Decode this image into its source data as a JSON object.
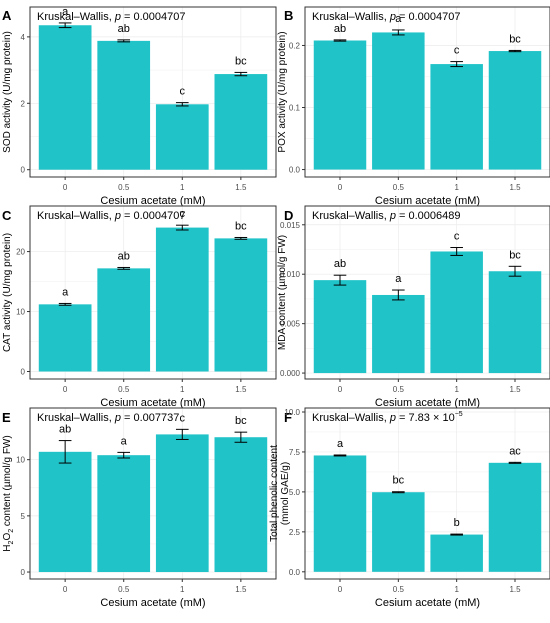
{
  "stat_test_label": "Kruskal–Wallis, ",
  "p_label": "p",
  "colors": {
    "bar": "#1fc3c8",
    "frame": "#333333",
    "grid": "#ebebeb"
  },
  "chart_data": [
    {
      "panel": "A",
      "type": "bar",
      "categories": [
        "0",
        "0.5",
        "1",
        "1.5"
      ],
      "values": [
        4.35,
        3.88,
        1.97,
        2.88
      ],
      "errors": [
        0.07,
        0.03,
        0.05,
        0.05
      ],
      "letters": [
        "a",
        "ab",
        "c",
        "bc"
      ],
      "xlabel": "Cesium acetate (mM)",
      "ylabel": [
        "SOD activity (U/mg protein)"
      ],
      "p_value": "= 0.0004707",
      "yticks": [
        0,
        2,
        4
      ],
      "yticklabels": [
        "0",
        "2",
        "4"
      ],
      "ylim": [
        -0.22,
        4.9
      ]
    },
    {
      "panel": "B",
      "type": "bar",
      "categories": [
        "0",
        "0.5",
        "1",
        "1.5"
      ],
      "values": [
        0.208,
        0.221,
        0.17,
        0.191
      ],
      "errors": [
        0.001,
        0.004,
        0.004,
        0.001
      ],
      "letters": [
        "ab",
        "a",
        "c",
        "bc"
      ],
      "xlabel": "Cesium acetate (mM)",
      "ylabel": [
        "POX activity (U/mg protein)"
      ],
      "p_value": "= 0.0004707",
      "yticks": [
        0,
        0.1,
        0.2
      ],
      "yticklabels": [
        "0.0",
        "0.1",
        "0.2"
      ],
      "ylim": [
        -0.012,
        0.262
      ]
    },
    {
      "panel": "C",
      "type": "bar",
      "categories": [
        "0",
        "0.5",
        "1",
        "1.5"
      ],
      "values": [
        11.2,
        17.2,
        24.0,
        22.2
      ],
      "errors": [
        0.15,
        0.15,
        0.4,
        0.15
      ],
      "letters": [
        "a",
        "ab",
        "c",
        "bc"
      ],
      "xlabel": "Cesium acetate (mM)",
      "ylabel": [
        "CAT activity (U/mg protein)"
      ],
      "p_value": "= 0.0004707",
      "yticks": [
        0,
        10,
        20
      ],
      "yticklabels": [
        "0",
        "10",
        "20"
      ],
      "ylim": [
        -1.25,
        27.6
      ]
    },
    {
      "panel": "D",
      "type": "bar",
      "categories": [
        "0",
        "0.5",
        "1",
        "1.5"
      ],
      "values": [
        0.0094,
        0.0079,
        0.0123,
        0.0103
      ],
      "errors": [
        0.0005,
        0.0005,
        0.0004,
        0.0005
      ],
      "letters": [
        "ab",
        "a",
        "c",
        "bc"
      ],
      "xlabel": "Cesium acetate (mM)",
      "ylabel": [
        "MDA content (µmol/g FW)"
      ],
      "p_value": "= 0.0006489",
      "yticks": [
        0,
        0.005,
        0.01,
        0.015
      ],
      "yticklabels": [
        "0.000",
        "0.005",
        "0.010",
        "0.015"
      ],
      "ylim": [
        -0.0006,
        0.0169
      ]
    },
    {
      "panel": "E",
      "type": "bar",
      "categories": [
        "0",
        "0.5",
        "1",
        "1.5"
      ],
      "values": [
        10.7,
        10.4,
        12.25,
        12.0
      ],
      "errors": [
        1.0,
        0.25,
        0.45,
        0.45
      ],
      "letters": [
        "ab",
        "a",
        "c",
        "bc"
      ],
      "xlabel": "Cesium acetate (mM)",
      "ylabel": [
        "content (µmol/g FW)"
      ],
      "ylabel_prefix": "H",
      "ylabel_sub1": "2",
      "ylabel_mid": "O",
      "ylabel_sub2": "2",
      "p_value": "= 0.007737",
      "yticks": [
        0,
        5,
        10
      ],
      "yticklabels": [
        "0",
        "5",
        "10"
      ],
      "ylim": [
        -0.62,
        14.6
      ]
    },
    {
      "panel": "F",
      "type": "bar",
      "categories": [
        "0",
        "0.5",
        "1",
        "1.5"
      ],
      "values": [
        7.28,
        4.98,
        2.33,
        6.82
      ],
      "errors": [
        0.03,
        0.03,
        0.03,
        0.03
      ],
      "letters": [
        "a",
        "bc",
        "b",
        "ac"
      ],
      "xlabel": "Cesium acetate (mM)",
      "ylabel": [
        "Total phenolic content",
        "(mmol GAE/g)"
      ],
      "p_value": "= 7.83 × 10",
      "p_exponent": "−5",
      "yticks": [
        0,
        2.5,
        5,
        7.5,
        10
      ],
      "yticklabels": [
        "0.0",
        "2.5",
        "5.0",
        "7.5",
        "10.0"
      ],
      "ylim": [
        -0.45,
        10.25
      ]
    }
  ]
}
